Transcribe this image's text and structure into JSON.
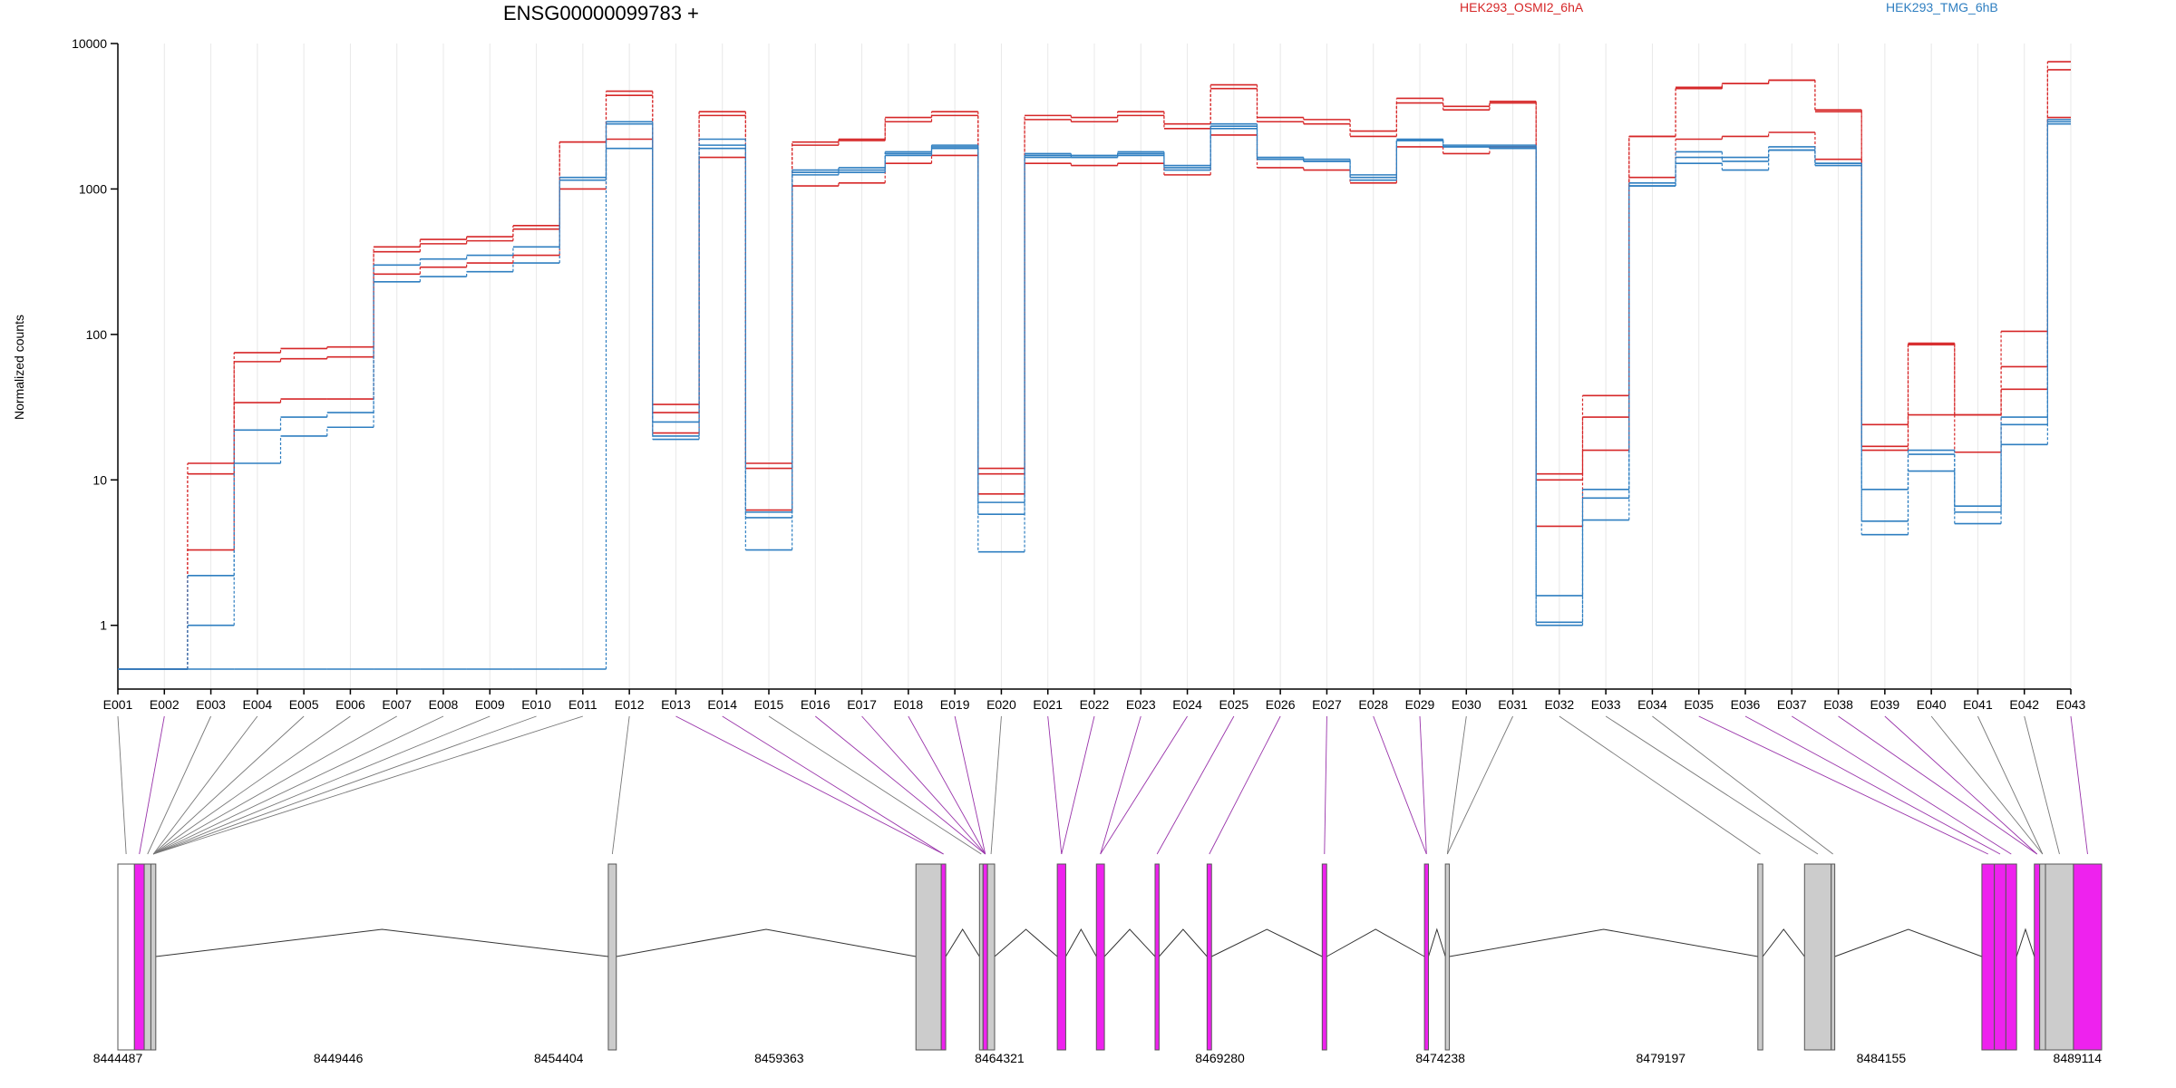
{
  "chart_data": {
    "type": "line",
    "title": "ENSG00000099783 +",
    "ylabel": "Normalized counts",
    "yscale": "log",
    "ylim": [
      0.5,
      10000
    ],
    "yticks": [
      "1",
      "10",
      "100",
      "1000",
      "10000"
    ],
    "categories": [
      "E001",
      "E002",
      "E003",
      "E004",
      "E005",
      "E006",
      "E007",
      "E008",
      "E009",
      "E010",
      "E011",
      "E012",
      "E013",
      "E014",
      "E015",
      "E016",
      "E017",
      "E018",
      "E019",
      "E020",
      "E021",
      "E022",
      "E023",
      "E024",
      "E025",
      "E026",
      "E027",
      "E028",
      "E029",
      "E030",
      "E031",
      "E032",
      "E033",
      "E034",
      "E035",
      "E036",
      "E037",
      "E038",
      "E039",
      "E040",
      "E041",
      "E042",
      "E043"
    ],
    "legend": [
      "HEK293_OSMI2_6hA",
      "HEK293_TMG_6hB"
    ],
    "colors": {
      "HEK293_OSMI2_6hA": "#d62728",
      "HEK293_TMG_6hB": "#2f7fc1"
    },
    "series": [
      {
        "group": "HEK293_OSMI2_6hA",
        "values": [
          0.5,
          0.5,
          13,
          75,
          80,
          82,
          400,
          450,
          470,
          560,
          2100,
          4700,
          33,
          3400,
          13,
          2100,
          2200,
          3100,
          3400,
          12,
          3200,
          3100,
          3400,
          2800,
          5200,
          3100,
          3000,
          2500,
          4200,
          3700,
          4000,
          11,
          38,
          2300,
          5000,
          5300,
          5600,
          3500,
          24,
          85,
          28,
          105,
          7500
        ]
      },
      {
        "group": "HEK293_OSMI2_6hA",
        "values": [
          0.5,
          0.5,
          11,
          65,
          68,
          70,
          370,
          420,
          440,
          530,
          2100,
          4400,
          29,
          3200,
          12,
          2000,
          2150,
          2900,
          3200,
          11,
          3000,
          2900,
          3200,
          2600,
          4900,
          2900,
          2800,
          2300,
          3900,
          3500,
          3900,
          10,
          27,
          2300,
          4900,
          5300,
          5600,
          3400,
          17,
          87,
          28,
          60,
          6600
        ]
      },
      {
        "group": "HEK293_OSMI2_6hA",
        "values": [
          0.5,
          0.5,
          3.3,
          34,
          36,
          36,
          260,
          290,
          310,
          350,
          1000,
          2200,
          21,
          1650,
          6.2,
          1050,
          1100,
          1500,
          1700,
          8,
          1500,
          1450,
          1500,
          1250,
          2350,
          1400,
          1350,
          1100,
          1950,
          1750,
          1950,
          4.8,
          16,
          1200,
          2200,
          2300,
          2450,
          1600,
          16,
          28,
          15.5,
          42,
          3100
        ]
      },
      {
        "group": "HEK293_TMG_6hB",
        "values": [
          0.5,
          0.5,
          2.2,
          22,
          27,
          29,
          300,
          330,
          350,
          400,
          1200,
          2900,
          25,
          2200,
          6,
          1350,
          1400,
          1800,
          2000,
          7,
          1750,
          1700,
          1800,
          1450,
          2800,
          1650,
          1600,
          1250,
          2200,
          2000,
          2000,
          1.6,
          8.6,
          1100,
          1800,
          1650,
          1950,
          1500,
          8.6,
          16,
          6.6,
          27,
          3000
        ]
      },
      {
        "group": "HEK293_TMG_6hB",
        "values": [
          0.5,
          0.5,
          1,
          13,
          20,
          23,
          230,
          250,
          270,
          310,
          1150,
          1900,
          19,
          1900,
          5.5,
          1250,
          1300,
          1750,
          1950,
          5.8,
          1650,
          1650,
          1750,
          1400,
          2700,
          1600,
          1550,
          1200,
          2150,
          1950,
          1950,
          1,
          7.5,
          1050,
          1500,
          1350,
          1850,
          1500,
          5.2,
          15,
          6,
          24,
          2900
        ]
      },
      {
        "group": "HEK293_TMG_6hB",
        "values": [
          0.5,
          0.5,
          0.5,
          0.5,
          0.5,
          0.5,
          0.5,
          0.5,
          0.5,
          0.5,
          0.5,
          2800,
          20,
          2000,
          3.3,
          1300,
          1350,
          1700,
          1900,
          3.2,
          1700,
          1650,
          1700,
          1350,
          2600,
          1600,
          1550,
          1150,
          2150,
          1950,
          1900,
          1.05,
          5.3,
          1050,
          1650,
          1550,
          1850,
          1450,
          4.2,
          11.5,
          5,
          17.5,
          2800
        ]
      }
    ],
    "gene_track": {
      "coordinates": [
        "8444487",
        "8449446",
        "8454404",
        "8459363",
        "8464321",
        "8469280",
        "8474238",
        "8479197",
        "8484155",
        "8489114"
      ],
      "range": [
        8444487,
        8489114
      ],
      "colors": {
        "exon": "#cccccc",
        "highlight": "#ee22ee",
        "intron": "#333333",
        "mapping": [
          "#777777",
          "#9933aa"
        ]
      },
      "exons": [
        {
          "s": 8444487,
          "e": 8444860,
          "c": "white"
        },
        {
          "s": 8444860,
          "e": 8445080,
          "c": "magenta"
        },
        {
          "s": 8445080,
          "e": 8445230,
          "c": "gray"
        },
        {
          "s": 8445230,
          "e": 8445340,
          "c": "gray"
        },
        {
          "s": 8455520,
          "e": 8455700,
          "c": "gray"
        },
        {
          "s": 8462440,
          "e": 8463010,
          "c": "gray"
        },
        {
          "s": 8463010,
          "e": 8463110,
          "c": "magenta"
        },
        {
          "s": 8463870,
          "e": 8463950,
          "c": "gray"
        },
        {
          "s": 8463950,
          "e": 8464050,
          "c": "magenta"
        },
        {
          "s": 8464050,
          "e": 8464210,
          "c": "gray"
        },
        {
          "s": 8465620,
          "e": 8465810,
          "c": "magenta"
        },
        {
          "s": 8466500,
          "e": 8466680,
          "c": "magenta"
        },
        {
          "s": 8467820,
          "e": 8467910,
          "c": "magenta"
        },
        {
          "s": 8468990,
          "e": 8469090,
          "c": "magenta"
        },
        {
          "s": 8471580,
          "e": 8471680,
          "c": "magenta"
        },
        {
          "s": 8473880,
          "e": 8473970,
          "c": "magenta"
        },
        {
          "s": 8474350,
          "e": 8474440,
          "c": "gray"
        },
        {
          "s": 8481380,
          "e": 8481490,
          "c": "gray"
        },
        {
          "s": 8482430,
          "e": 8483030,
          "c": "gray"
        },
        {
          "s": 8483030,
          "e": 8483110,
          "c": "gray"
        },
        {
          "s": 8486420,
          "e": 8486700,
          "c": "magenta"
        },
        {
          "s": 8486700,
          "e": 8486960,
          "c": "magenta"
        },
        {
          "s": 8486960,
          "e": 8487200,
          "c": "magenta"
        },
        {
          "s": 8487600,
          "e": 8487720,
          "c": "magenta"
        },
        {
          "s": 8487720,
          "e": 8487850,
          "c": "gray"
        },
        {
          "s": 8487850,
          "e": 8488480,
          "c": "gray"
        },
        {
          "s": 8488480,
          "e": 8489114,
          "c": "magenta"
        }
      ]
    }
  }
}
